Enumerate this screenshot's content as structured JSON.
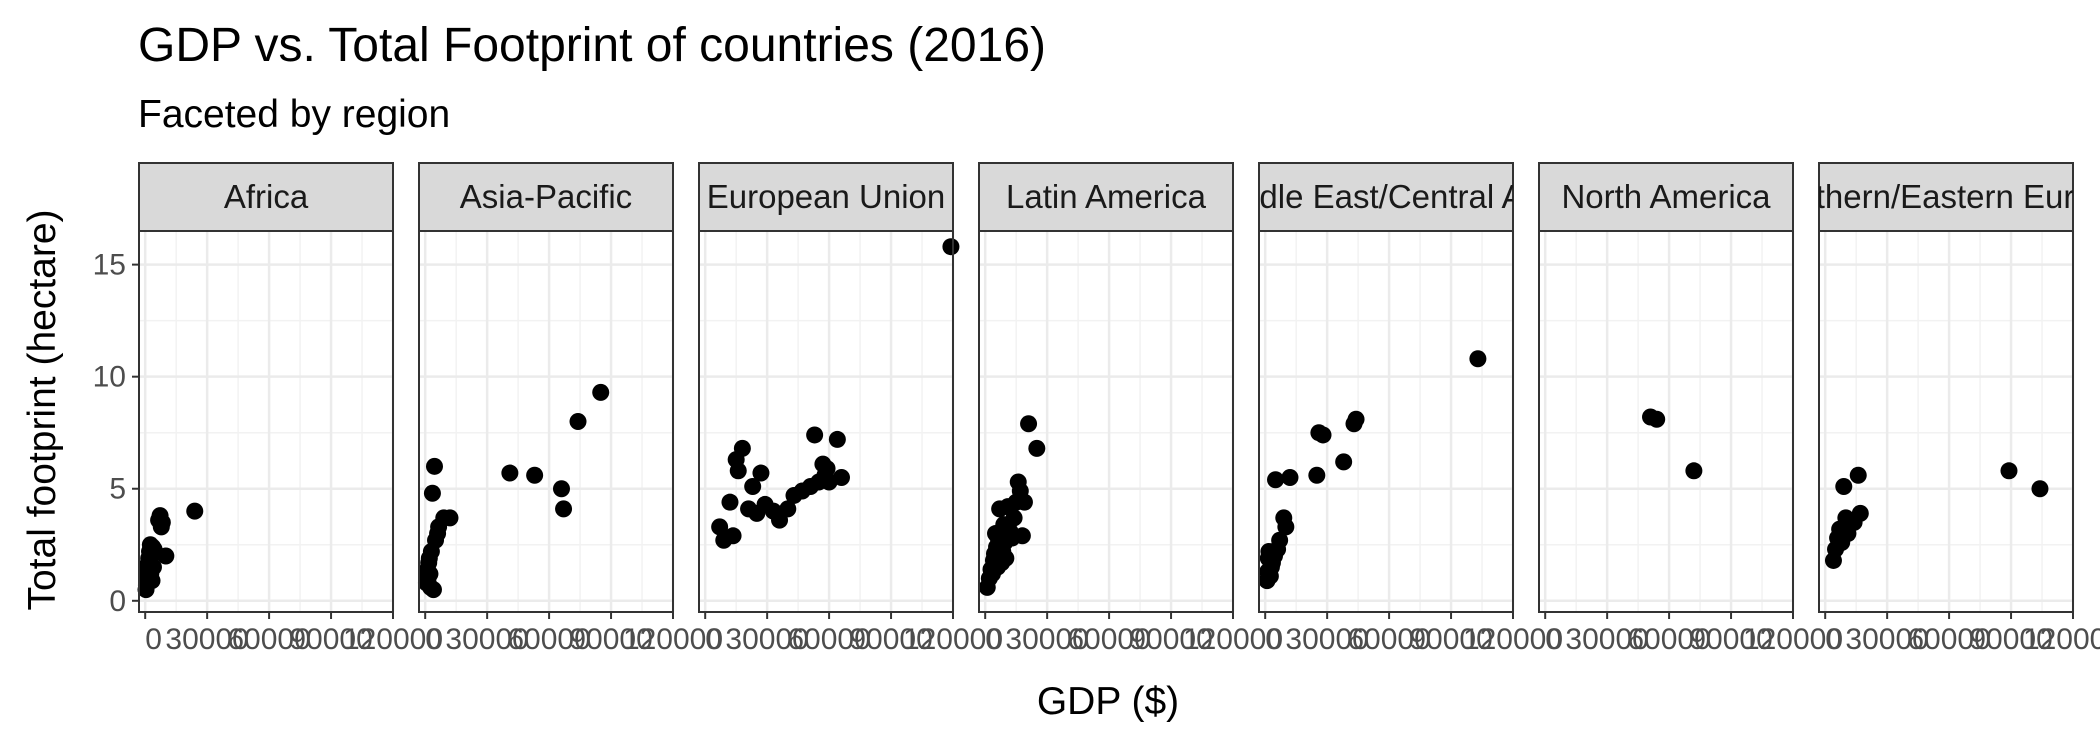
{
  "chart_data": {
    "type": "scatter",
    "title": "GDP vs. Total Footprint of countries (2016)",
    "subtitle": "Faceted by region",
    "xlabel": "GDP ($)",
    "ylabel": "Total footprint (hectare)",
    "xlim": [
      -3000,
      120000
    ],
    "ylim": [
      -0.5,
      16.5
    ],
    "x_ticks": [
      0,
      30000,
      60000,
      90000,
      120000
    ],
    "x_tick_labels": [
      "0",
      "30000",
      "60000",
      "90000",
      "120000"
    ],
    "y_ticks": [
      0,
      5,
      10,
      15
    ],
    "y_tick_labels": [
      "0",
      "5",
      "10",
      "15"
    ],
    "grid": true,
    "point_color": "#000000",
    "facets": [
      {
        "label": "Africa",
        "points": [
          {
            "x": 400,
            "y": 0.5
          },
          {
            "x": 600,
            "y": 0.7
          },
          {
            "x": 700,
            "y": 1.0
          },
          {
            "x": 900,
            "y": 1.3
          },
          {
            "x": 1100,
            "y": 1.6
          },
          {
            "x": 1300,
            "y": 0.8
          },
          {
            "x": 1500,
            "y": 1.1
          },
          {
            "x": 1700,
            "y": 1.9
          },
          {
            "x": 1900,
            "y": 1.4
          },
          {
            "x": 2100,
            "y": 2.2
          },
          {
            "x": 2300,
            "y": 1.7
          },
          {
            "x": 2500,
            "y": 2.5
          },
          {
            "x": 2700,
            "y": 1.2
          },
          {
            "x": 3000,
            "y": 2.0
          },
          {
            "x": 3300,
            "y": 0.9
          },
          {
            "x": 3600,
            "y": 2.4
          },
          {
            "x": 4000,
            "y": 1.5
          },
          {
            "x": 4300,
            "y": 2.3
          },
          {
            "x": 6500,
            "y": 3.6
          },
          {
            "x": 7200,
            "y": 3.8
          },
          {
            "x": 7800,
            "y": 3.3
          },
          {
            "x": 8300,
            "y": 3.5
          },
          {
            "x": 10000,
            "y": 2.0
          },
          {
            "x": 24000,
            "y": 4.0
          }
        ]
      },
      {
        "label": "Asia-Pacific",
        "points": [
          {
            "x": 600,
            "y": 0.8
          },
          {
            "x": 900,
            "y": 1.1
          },
          {
            "x": 1100,
            "y": 1.4
          },
          {
            "x": 1400,
            "y": 1.0
          },
          {
            "x": 1700,
            "y": 1.7
          },
          {
            "x": 2000,
            "y": 1.9
          },
          {
            "x": 2300,
            "y": 1.2
          },
          {
            "x": 2600,
            "y": 0.6
          },
          {
            "x": 3000,
            "y": 2.2
          },
          {
            "x": 3500,
            "y": 4.8
          },
          {
            "x": 4500,
            "y": 6.0
          },
          {
            "x": 4000,
            "y": 0.5
          },
          {
            "x": 5000,
            "y": 2.7
          },
          {
            "x": 6000,
            "y": 3.0
          },
          {
            "x": 6500,
            "y": 3.3
          },
          {
            "x": 9000,
            "y": 3.7
          },
          {
            "x": 12000,
            "y": 3.7
          },
          {
            "x": 41000,
            "y": 5.7
          },
          {
            "x": 53000,
            "y": 5.6
          },
          {
            "x": 66000,
            "y": 5.0
          },
          {
            "x": 67000,
            "y": 4.1
          },
          {
            "x": 74000,
            "y": 8.0
          },
          {
            "x": 85000,
            "y": 9.3
          }
        ]
      },
      {
        "label": "European Union",
        "points": [
          {
            "x": 7000,
            "y": 3.3
          },
          {
            "x": 9000,
            "y": 2.7
          },
          {
            "x": 12000,
            "y": 4.4
          },
          {
            "x": 13500,
            "y": 2.9
          },
          {
            "x": 15000,
            "y": 6.3
          },
          {
            "x": 16000,
            "y": 5.8
          },
          {
            "x": 18000,
            "y": 6.8
          },
          {
            "x": 21000,
            "y": 4.1
          },
          {
            "x": 23000,
            "y": 5.1
          },
          {
            "x": 25000,
            "y": 3.9
          },
          {
            "x": 27000,
            "y": 5.7
          },
          {
            "x": 29000,
            "y": 4.3
          },
          {
            "x": 33000,
            "y": 4.0
          },
          {
            "x": 36000,
            "y": 3.6
          },
          {
            "x": 40000,
            "y": 4.1
          },
          {
            "x": 43000,
            "y": 4.7
          },
          {
            "x": 47000,
            "y": 4.9
          },
          {
            "x": 51000,
            "y": 5.1
          },
          {
            "x": 53000,
            "y": 7.4
          },
          {
            "x": 55000,
            "y": 5.3
          },
          {
            "x": 57000,
            "y": 6.1
          },
          {
            "x": 58000,
            "y": 5.6
          },
          {
            "x": 59000,
            "y": 5.9
          },
          {
            "x": 60000,
            "y": 5.3
          },
          {
            "x": 64000,
            "y": 7.2
          },
          {
            "x": 66000,
            "y": 5.5
          },
          {
            "x": 119000,
            "y": 15.8
          }
        ]
      },
      {
        "label": "Latin America",
        "points": [
          {
            "x": 1000,
            "y": 0.6
          },
          {
            "x": 2000,
            "y": 1.0
          },
          {
            "x": 2800,
            "y": 1.4
          },
          {
            "x": 3500,
            "y": 1.2
          },
          {
            "x": 4000,
            "y": 1.8
          },
          {
            "x": 4500,
            "y": 2.1
          },
          {
            "x": 5000,
            "y": 3.0
          },
          {
            "x": 5500,
            "y": 2.4
          },
          {
            "x": 6000,
            "y": 1.5
          },
          {
            "x": 6500,
            "y": 2.7
          },
          {
            "x": 7000,
            "y": 4.1
          },
          {
            "x": 7500,
            "y": 3.0
          },
          {
            "x": 8000,
            "y": 1.7
          },
          {
            "x": 8500,
            "y": 2.2
          },
          {
            "x": 9000,
            "y": 3.4
          },
          {
            "x": 9500,
            "y": 2.6
          },
          {
            "x": 10000,
            "y": 1.9
          },
          {
            "x": 11000,
            "y": 4.2
          },
          {
            "x": 12000,
            "y": 3.1
          },
          {
            "x": 13000,
            "y": 2.8
          },
          {
            "x": 14000,
            "y": 3.7
          },
          {
            "x": 15000,
            "y": 4.4
          },
          {
            "x": 16000,
            "y": 5.3
          },
          {
            "x": 17000,
            "y": 4.9
          },
          {
            "x": 18000,
            "y": 2.9
          },
          {
            "x": 19000,
            "y": 4.4
          },
          {
            "x": 21000,
            "y": 7.9
          },
          {
            "x": 25000,
            "y": 6.8
          }
        ]
      },
      {
        "label": "Middle East/Central Asia",
        "points": [
          {
            "x": 900,
            "y": 0.9
          },
          {
            "x": 1200,
            "y": 1.3
          },
          {
            "x": 1500,
            "y": 1.9
          },
          {
            "x": 1800,
            "y": 2.2
          },
          {
            "x": 2500,
            "y": 1.1
          },
          {
            "x": 3000,
            "y": 1.5
          },
          {
            "x": 3500,
            "y": 1.7
          },
          {
            "x": 4500,
            "y": 2.0
          },
          {
            "x": 5000,
            "y": 5.4
          },
          {
            "x": 6000,
            "y": 2.3
          },
          {
            "x": 7000,
            "y": 2.7
          },
          {
            "x": 9000,
            "y": 3.7
          },
          {
            "x": 10000,
            "y": 3.3
          },
          {
            "x": 12000,
            "y": 5.5
          },
          {
            "x": 25000,
            "y": 5.6
          },
          {
            "x": 26000,
            "y": 7.5
          },
          {
            "x": 28000,
            "y": 7.4
          },
          {
            "x": 38000,
            "y": 6.2
          },
          {
            "x": 43000,
            "y": 7.9
          },
          {
            "x": 44000,
            "y": 8.1
          },
          {
            "x": 103000,
            "y": 10.8
          }
        ]
      },
      {
        "label": "North America",
        "points": [
          {
            "x": 51000,
            "y": 8.2
          },
          {
            "x": 54000,
            "y": 8.1
          },
          {
            "x": 72000,
            "y": 5.8
          }
        ]
      },
      {
        "label": "Northern/Eastern Europe",
        "points": [
          {
            "x": 4000,
            "y": 1.8
          },
          {
            "x": 5000,
            "y": 2.3
          },
          {
            "x": 6000,
            "y": 2.8
          },
          {
            "x": 7000,
            "y": 3.2
          },
          {
            "x": 8000,
            "y": 2.6
          },
          {
            "x": 9000,
            "y": 5.1
          },
          {
            "x": 10000,
            "y": 3.7
          },
          {
            "x": 11000,
            "y": 3.0
          },
          {
            "x": 14000,
            "y": 3.5
          },
          {
            "x": 16000,
            "y": 5.6
          },
          {
            "x": 17000,
            "y": 3.9
          },
          {
            "x": 89000,
            "y": 5.8
          },
          {
            "x": 104000,
            "y": 5.0
          }
        ]
      }
    ]
  }
}
